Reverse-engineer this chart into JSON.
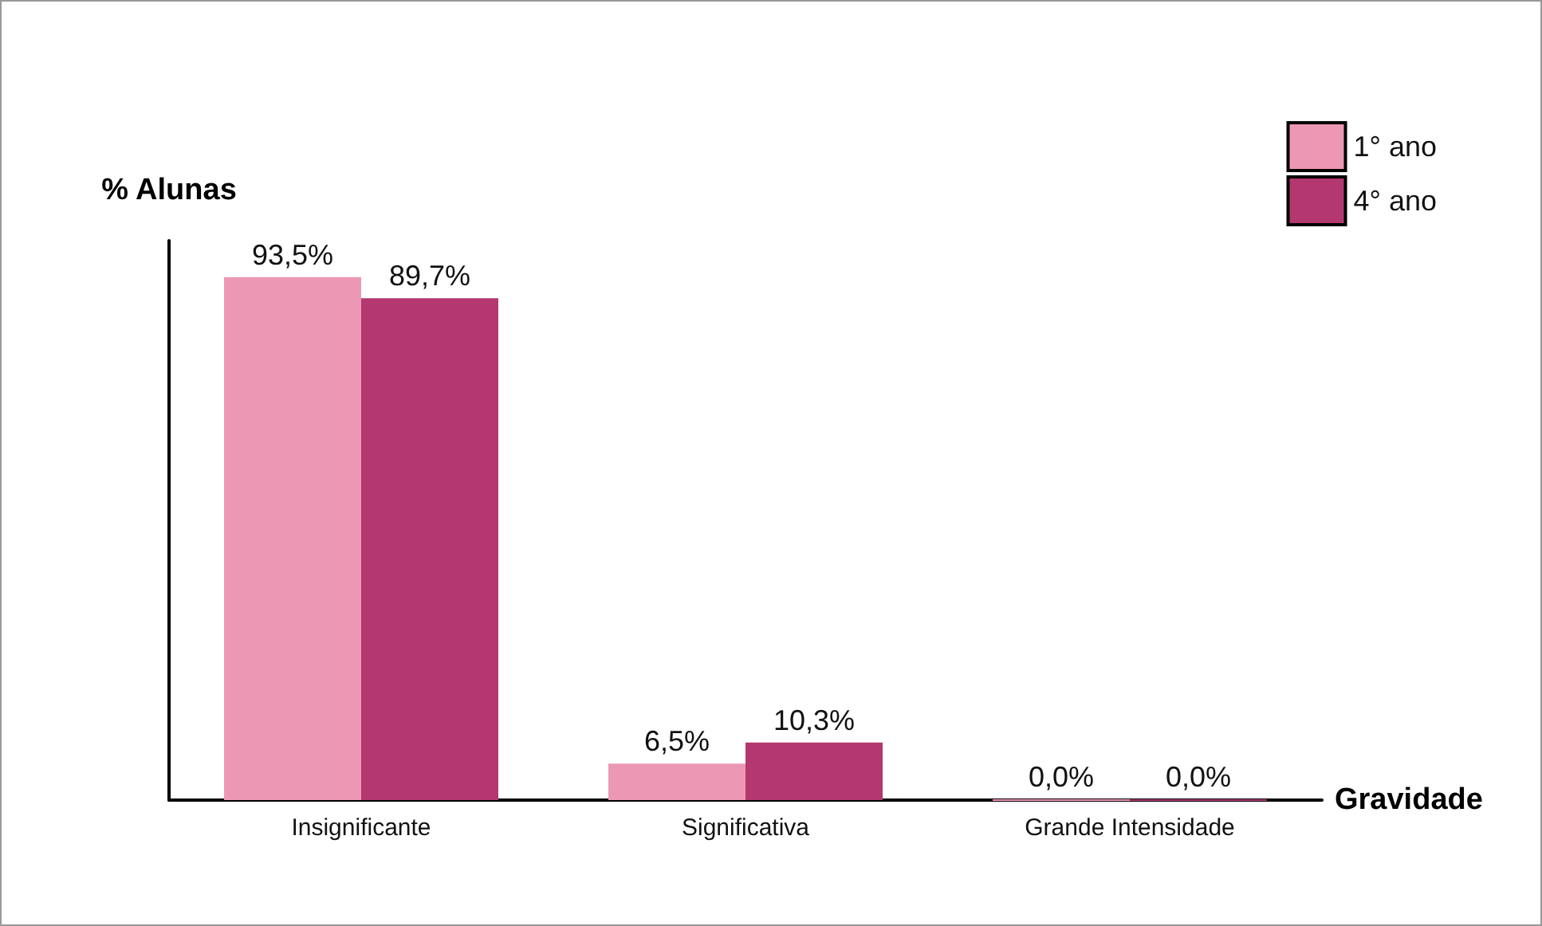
{
  "chart_data": {
    "type": "bar",
    "xlabel": "Gravidade",
    "ylabel": "% Alunas",
    "categories": [
      "Insignificante",
      "Significativa",
      "Grande Intensidade"
    ],
    "series": [
      {
        "name": "1° ano",
        "color": "#ec98b5",
        "values": [
          93.5,
          6.5,
          0
        ],
        "value_labels": [
          "93,5%",
          "6,5%",
          "0,0%"
        ]
      },
      {
        "name": "4° ano",
        "color": "#b3386f",
        "values": [
          89.7,
          10.3,
          0
        ],
        "value_labels": [
          "89,7%",
          "10,3%",
          "0,0%"
        ]
      }
    ],
    "legend": "top right",
    "grid": false
  }
}
